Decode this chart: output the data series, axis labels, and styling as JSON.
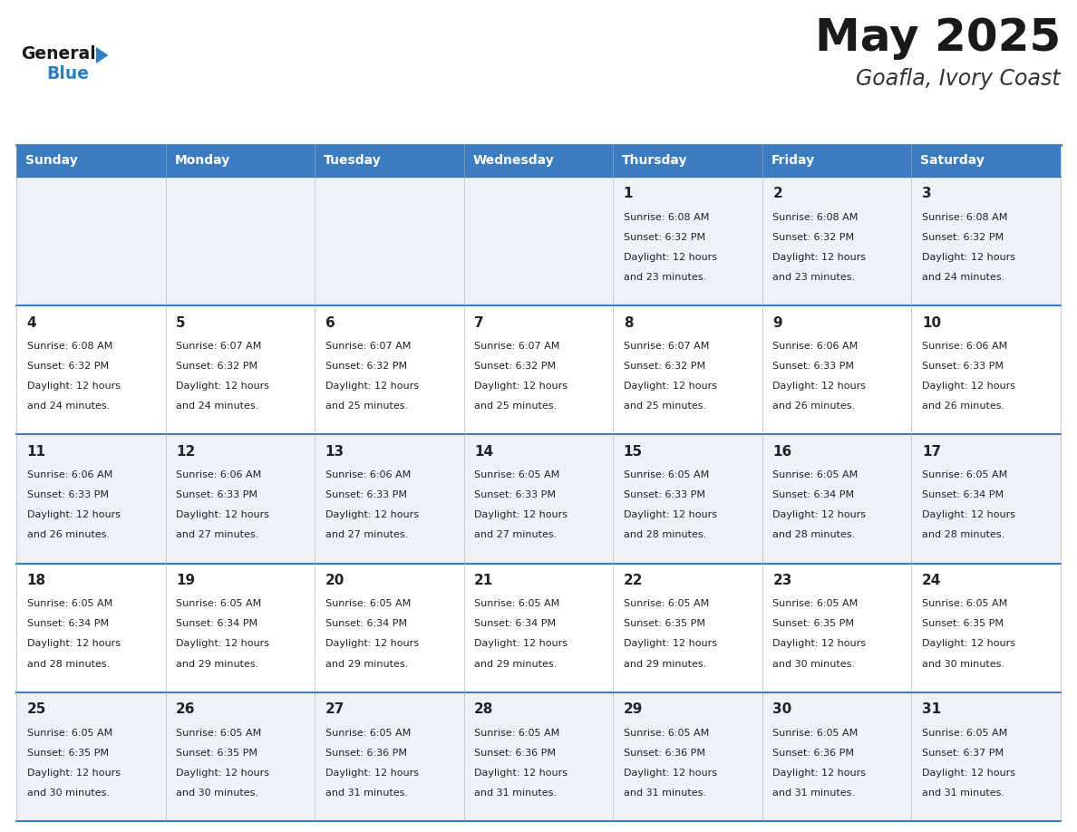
{
  "title": "May 2025",
  "subtitle": "Goafla, Ivory Coast",
  "header_color": "#3a7cbf",
  "header_text_color": "#ffffff",
  "day_names": [
    "Sunday",
    "Monday",
    "Tuesday",
    "Wednesday",
    "Thursday",
    "Friday",
    "Saturday"
  ],
  "cell_bg_even": "#eef2f7",
  "cell_bg_odd": "#ffffff",
  "border_color": "#3a7cbf",
  "text_color": "#222222",
  "title_color": "#1a1a1a",
  "subtitle_color": "#333333",
  "logo_general_color": "#1a1a1a",
  "logo_blue_color": "#2e7fc0",
  "days": [
    {
      "day": 1,
      "col": 4,
      "row": 0,
      "sunrise": "6:08 AM",
      "sunset": "6:32 PM",
      "daylight": "12 hours and 23 minutes."
    },
    {
      "day": 2,
      "col": 5,
      "row": 0,
      "sunrise": "6:08 AM",
      "sunset": "6:32 PM",
      "daylight": "12 hours and 23 minutes."
    },
    {
      "day": 3,
      "col": 6,
      "row": 0,
      "sunrise": "6:08 AM",
      "sunset": "6:32 PM",
      "daylight": "12 hours and 24 minutes."
    },
    {
      "day": 4,
      "col": 0,
      "row": 1,
      "sunrise": "6:08 AM",
      "sunset": "6:32 PM",
      "daylight": "12 hours and 24 minutes."
    },
    {
      "day": 5,
      "col": 1,
      "row": 1,
      "sunrise": "6:07 AM",
      "sunset": "6:32 PM",
      "daylight": "12 hours and 24 minutes."
    },
    {
      "day": 6,
      "col": 2,
      "row": 1,
      "sunrise": "6:07 AM",
      "sunset": "6:32 PM",
      "daylight": "12 hours and 25 minutes."
    },
    {
      "day": 7,
      "col": 3,
      "row": 1,
      "sunrise": "6:07 AM",
      "sunset": "6:32 PM",
      "daylight": "12 hours and 25 minutes."
    },
    {
      "day": 8,
      "col": 4,
      "row": 1,
      "sunrise": "6:07 AM",
      "sunset": "6:32 PM",
      "daylight": "12 hours and 25 minutes."
    },
    {
      "day": 9,
      "col": 5,
      "row": 1,
      "sunrise": "6:06 AM",
      "sunset": "6:33 PM",
      "daylight": "12 hours and 26 minutes."
    },
    {
      "day": 10,
      "col": 6,
      "row": 1,
      "sunrise": "6:06 AM",
      "sunset": "6:33 PM",
      "daylight": "12 hours and 26 minutes."
    },
    {
      "day": 11,
      "col": 0,
      "row": 2,
      "sunrise": "6:06 AM",
      "sunset": "6:33 PM",
      "daylight": "12 hours and 26 minutes."
    },
    {
      "day": 12,
      "col": 1,
      "row": 2,
      "sunrise": "6:06 AM",
      "sunset": "6:33 PM",
      "daylight": "12 hours and 27 minutes."
    },
    {
      "day": 13,
      "col": 2,
      "row": 2,
      "sunrise": "6:06 AM",
      "sunset": "6:33 PM",
      "daylight": "12 hours and 27 minutes."
    },
    {
      "day": 14,
      "col": 3,
      "row": 2,
      "sunrise": "6:05 AM",
      "sunset": "6:33 PM",
      "daylight": "12 hours and 27 minutes."
    },
    {
      "day": 15,
      "col": 4,
      "row": 2,
      "sunrise": "6:05 AM",
      "sunset": "6:33 PM",
      "daylight": "12 hours and 28 minutes."
    },
    {
      "day": 16,
      "col": 5,
      "row": 2,
      "sunrise": "6:05 AM",
      "sunset": "6:34 PM",
      "daylight": "12 hours and 28 minutes."
    },
    {
      "day": 17,
      "col": 6,
      "row": 2,
      "sunrise": "6:05 AM",
      "sunset": "6:34 PM",
      "daylight": "12 hours and 28 minutes."
    },
    {
      "day": 18,
      "col": 0,
      "row": 3,
      "sunrise": "6:05 AM",
      "sunset": "6:34 PM",
      "daylight": "12 hours and 28 minutes."
    },
    {
      "day": 19,
      "col": 1,
      "row": 3,
      "sunrise": "6:05 AM",
      "sunset": "6:34 PM",
      "daylight": "12 hours and 29 minutes."
    },
    {
      "day": 20,
      "col": 2,
      "row": 3,
      "sunrise": "6:05 AM",
      "sunset": "6:34 PM",
      "daylight": "12 hours and 29 minutes."
    },
    {
      "day": 21,
      "col": 3,
      "row": 3,
      "sunrise": "6:05 AM",
      "sunset": "6:34 PM",
      "daylight": "12 hours and 29 minutes."
    },
    {
      "day": 22,
      "col": 4,
      "row": 3,
      "sunrise": "6:05 AM",
      "sunset": "6:35 PM",
      "daylight": "12 hours and 29 minutes."
    },
    {
      "day": 23,
      "col": 5,
      "row": 3,
      "sunrise": "6:05 AM",
      "sunset": "6:35 PM",
      "daylight": "12 hours and 30 minutes."
    },
    {
      "day": 24,
      "col": 6,
      "row": 3,
      "sunrise": "6:05 AM",
      "sunset": "6:35 PM",
      "daylight": "12 hours and 30 minutes."
    },
    {
      "day": 25,
      "col": 0,
      "row": 4,
      "sunrise": "6:05 AM",
      "sunset": "6:35 PM",
      "daylight": "12 hours and 30 minutes."
    },
    {
      "day": 26,
      "col": 1,
      "row": 4,
      "sunrise": "6:05 AM",
      "sunset": "6:35 PM",
      "daylight": "12 hours and 30 minutes."
    },
    {
      "day": 27,
      "col": 2,
      "row": 4,
      "sunrise": "6:05 AM",
      "sunset": "6:36 PM",
      "daylight": "12 hours and 31 minutes."
    },
    {
      "day": 28,
      "col": 3,
      "row": 4,
      "sunrise": "6:05 AM",
      "sunset": "6:36 PM",
      "daylight": "12 hours and 31 minutes."
    },
    {
      "day": 29,
      "col": 4,
      "row": 4,
      "sunrise": "6:05 AM",
      "sunset": "6:36 PM",
      "daylight": "12 hours and 31 minutes."
    },
    {
      "day": 30,
      "col": 5,
      "row": 4,
      "sunrise": "6:05 AM",
      "sunset": "6:36 PM",
      "daylight": "12 hours and 31 minutes."
    },
    {
      "day": 31,
      "col": 6,
      "row": 4,
      "sunrise": "6:05 AM",
      "sunset": "6:37 PM",
      "daylight": "12 hours and 31 minutes."
    }
  ]
}
